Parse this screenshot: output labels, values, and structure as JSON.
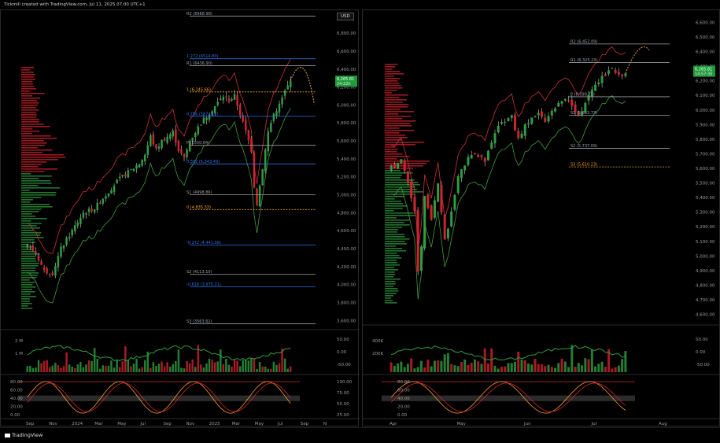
{
  "header": {
    "credit": "Tickmill created with TradingView.com, Jul 11, 2025 07:00 UTC+1",
    "currency": "USD"
  },
  "footer": {
    "brand": "TradingView"
  },
  "colors": {
    "up": "#2e9e3e",
    "down": "#d2222e",
    "upper_band": "#c8323c",
    "lower_band": "#3f9a3f",
    "fib_blue": "#2f6fe0",
    "orange": "#f0a030",
    "price_badge": "#1e9b3a"
  },
  "chart_data": [
    {
      "type": "candlestick",
      "panel": "left",
      "x_ticks": [
        "Sep",
        "Nov",
        "2024",
        "Mar",
        "May",
        "Jul",
        "Sep",
        "Nov",
        "2025",
        "Mar",
        "May",
        "Jul",
        "Sep",
        "N"
      ],
      "y_ticks": [
        3600,
        3800,
        4000,
        4200,
        4400,
        4600,
        4800,
        5000,
        5200,
        5400,
        5600,
        5800,
        6000,
        6200,
        6400,
        6600,
        6800
      ],
      "ylim": [
        3550,
        6950
      ],
      "last_price": {
        "value": "6,265.81",
        "countdown": "24:22h"
      },
      "path": [
        [
          0,
          4450
        ],
        [
          3,
          4350
        ],
        [
          6,
          4150
        ],
        [
          9,
          4130
        ],
        [
          12,
          4400
        ],
        [
          16,
          4600
        ],
        [
          20,
          4800
        ],
        [
          24,
          4850
        ],
        [
          28,
          5000
        ],
        [
          32,
          5150
        ],
        [
          36,
          5250
        ],
        [
          40,
          5350
        ],
        [
          42,
          5450
        ],
        [
          44,
          5650
        ],
        [
          46,
          5500
        ],
        [
          48,
          5600
        ],
        [
          52,
          5700
        ],
        [
          54,
          5500
        ],
        [
          56,
          5400
        ],
        [
          58,
          5600
        ],
        [
          62,
          5800
        ],
        [
          66,
          5950
        ],
        [
          70,
          6100
        ],
        [
          72,
          6050
        ],
        [
          74,
          6100
        ],
        [
          76,
          5900
        ],
        [
          78,
          5700
        ],
        [
          80,
          5500
        ],
        [
          81,
          5100
        ],
        [
          82,
          4900
        ],
        [
          84,
          5300
        ],
        [
          86,
          5700
        ],
        [
          88,
          5900
        ],
        [
          90,
          6000
        ],
        [
          92,
          6150
        ],
        [
          94,
          6265
        ]
      ],
      "n_candles": 95,
      "levels": [
        {
          "label": "R2 (6988.98)",
          "value": 6988.98,
          "color": "#9aa0a6"
        },
        {
          "label": "1.272 (6514.80)",
          "value": 6514.8,
          "color": "#2f6fe0"
        },
        {
          "label": "R1 (6436.90)",
          "value": 6436.9,
          "color": "#9aa0a6"
        },
        {
          "label": "1 (6,145.66)",
          "value": 6145.66,
          "color": "#f0a030"
        },
        {
          "label": "0.786 (5874.12)",
          "value": 5874.12,
          "color": "#2f6fe0"
        },
        {
          "label": "P (5550.64)",
          "value": 5550.64,
          "color": "#9aa0a6"
        },
        {
          "label": "0.382 (5,343.49)",
          "value": 5343.49,
          "color": "#2f6fe0"
        },
        {
          "label": "S1 (4998.86)",
          "value": 4998.86,
          "color": "#9aa0a6"
        },
        {
          "label": "0 (4,835.33)",
          "value": 4835.33,
          "color": "#f0a030"
        },
        {
          "label": "-0.272 (4,441.38)",
          "value": 4441.38,
          "color": "#2f6fe0"
        },
        {
          "label": "S2 (4113.10)",
          "value": 4113.1,
          "color": "#9aa0a6"
        },
        {
          "label": "-0.618 (3,975.21)",
          "value": 3975.21,
          "color": "#2f6fe0"
        },
        {
          "label": "S3 (3563.62)",
          "value": 3563.62,
          "color": "#9aa0a6"
        }
      ],
      "volume_ticks": [
        "2 M",
        "1 M"
      ],
      "volume_osc_ticks": [
        "50.00",
        "0.00",
        "-50.00"
      ],
      "osc_left_ticks": [
        "80.00",
        "60.00",
        "40.00",
        "20.00",
        "0.00"
      ],
      "osc_right_ticks": [
        "100.00",
        "75.00",
        "50.00",
        "25.00"
      ]
    },
    {
      "type": "candlestick",
      "panel": "right",
      "x_ticks": [
        "Apr",
        "May",
        "Jun",
        "Jul",
        "Aug"
      ],
      "y_ticks": [
        4600,
        4700,
        4800,
        4900,
        5000,
        5100,
        5200,
        5300,
        5400,
        5500,
        5600,
        5700,
        5800,
        5900,
        6000,
        6100,
        6200,
        6300,
        6400,
        6500,
        6600
      ],
      "ylim": [
        4560,
        6640
      ],
      "last_price": {
        "value": "6,265.81",
        "countdown": "14:57:35"
      },
      "path": [
        [
          0,
          5600
        ],
        [
          3,
          5650
        ],
        [
          5,
          5500
        ],
        [
          7,
          5300
        ],
        [
          8,
          4900
        ],
        [
          9,
          5050
        ],
        [
          10,
          5400
        ],
        [
          12,
          5250
        ],
        [
          14,
          5500
        ],
        [
          16,
          5100
        ],
        [
          18,
          5300
        ],
        [
          20,
          5550
        ],
        [
          24,
          5700
        ],
        [
          28,
          5650
        ],
        [
          32,
          5900
        ],
        [
          36,
          5950
        ],
        [
          38,
          5800
        ],
        [
          40,
          5900
        ],
        [
          44,
          5980
        ],
        [
          46,
          5920
        ],
        [
          48,
          6000
        ],
        [
          52,
          6080
        ],
        [
          56,
          5950
        ],
        [
          58,
          6050
        ],
        [
          62,
          6200
        ],
        [
          66,
          6280
        ],
        [
          68,
          6230
        ],
        [
          70,
          6265
        ]
      ],
      "n_candles": 71,
      "levels": [
        {
          "label": "R2 (6,452.09)",
          "value": 6452.09,
          "color": "#9aa0a6"
        },
        {
          "label": "R1 (6,325.23)",
          "value": 6325.23,
          "color": "#9aa0a6"
        },
        {
          "label": "P (6,090.73)",
          "value": 6090.73,
          "color": "#9aa0a6"
        },
        {
          "label": "S1 (5,963.73)",
          "value": 5963.73,
          "color": "#9aa0a6"
        },
        {
          "label": "S2 (5,737.09)",
          "value": 5737.09,
          "color": "#9aa0a6"
        },
        {
          "label": "S3 (5,610.23)",
          "value": 5610.23,
          "color": "#f0a030"
        }
      ],
      "volume_ticks": [
        "400K",
        "200K"
      ],
      "volume_osc_ticks": [
        "50.00",
        "0.00",
        "-50.00"
      ],
      "osc_ticks": [
        "80.00",
        "60.00",
        "40.00",
        "20.00",
        "0.00"
      ]
    }
  ]
}
